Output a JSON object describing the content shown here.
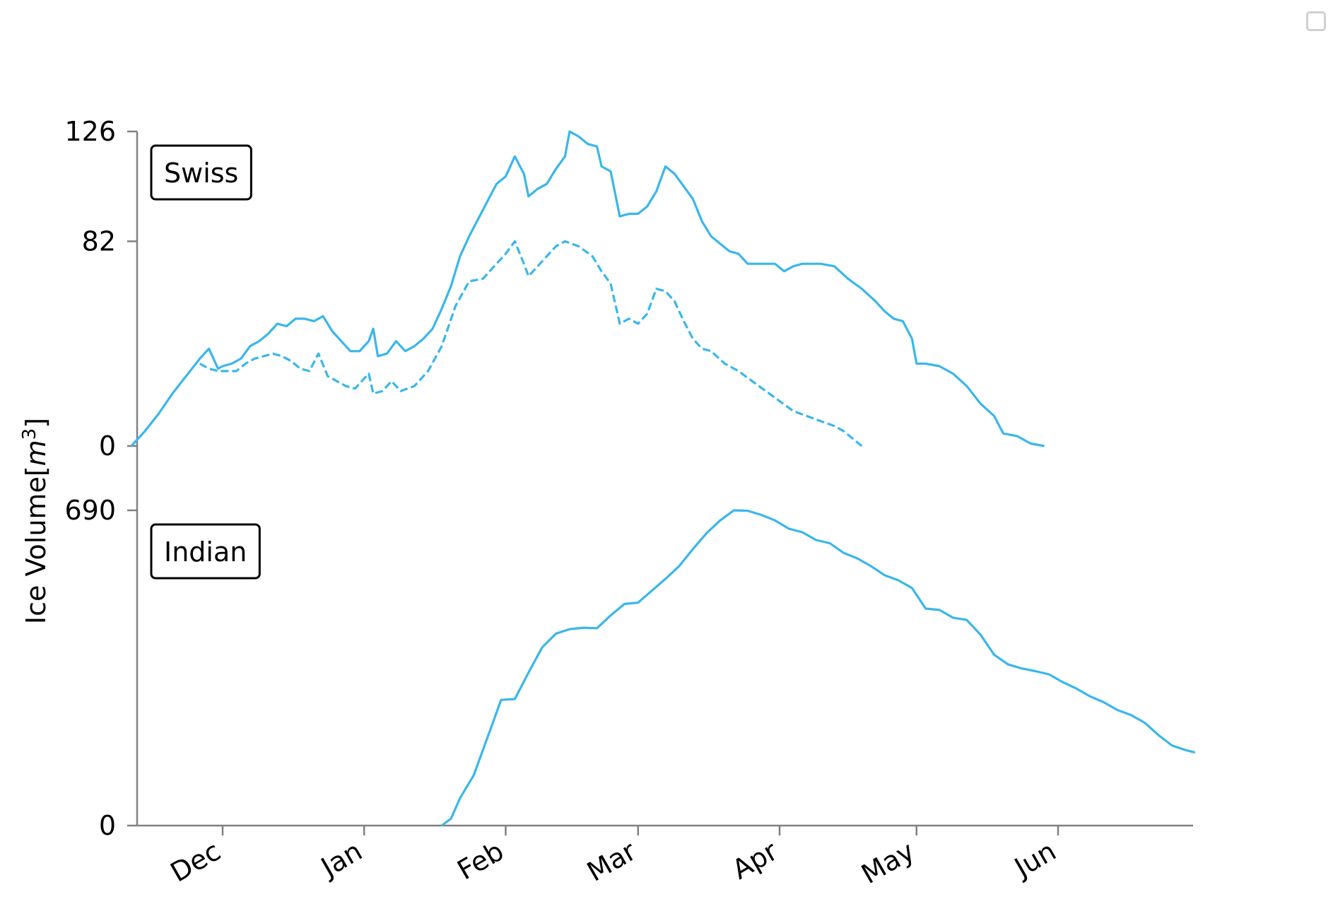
{
  "chart_data": {
    "type": "line",
    "ylabel": "Ice Volume[m³]",
    "ylabel_parts": {
      "main": "Ice Volume[",
      "var": "m",
      "exp": "3",
      "close": "]"
    },
    "x_ticks": [
      "Dec",
      "Jan",
      "Feb",
      "Mar",
      "Apr",
      "May",
      "Jun"
    ],
    "x_tick_dates": [
      "2019-12-01",
      "2020-01-01",
      "2020-02-01",
      "2020-03-01",
      "2020-04-01",
      "2020-05-01",
      "2020-06-01"
    ],
    "colors": {
      "series": "#39b6ec",
      "axis": "#808080",
      "box_border": "#000000"
    },
    "panels": [
      {
        "label": "Swiss",
        "ylim": [
          0,
          126
        ],
        "yticks": [
          "0",
          "82",
          "126"
        ],
        "series": [
          {
            "style": "solid",
            "points": [
              [
                "2019-11-11",
                0
              ],
              [
                "2019-11-14",
                6
              ],
              [
                "2019-11-17",
                13
              ],
              [
                "2019-11-20",
                21
              ],
              [
                "2019-11-23",
                28
              ],
              [
                "2019-11-26",
                35
              ],
              [
                "2019-11-28",
                39
              ],
              [
                "2019-11-30",
                31
              ],
              [
                "2019-12-01",
                32
              ],
              [
                "2019-12-03",
                33
              ],
              [
                "2019-12-05",
                35
              ],
              [
                "2019-12-07",
                40
              ],
              [
                "2019-12-09",
                42
              ],
              [
                "2019-12-11",
                45
              ],
              [
                "2019-12-13",
                49
              ],
              [
                "2019-12-15",
                48
              ],
              [
                "2019-12-17",
                51
              ],
              [
                "2019-12-19",
                51
              ],
              [
                "2019-12-21",
                50
              ],
              [
                "2019-12-23",
                52
              ],
              [
                "2019-12-25",
                46
              ],
              [
                "2019-12-27",
                42
              ],
              [
                "2019-12-29",
                38
              ],
              [
                "2019-12-31",
                38
              ],
              [
                "2020-01-02",
                42
              ],
              [
                "2020-01-03",
                47
              ],
              [
                "2020-01-04",
                36
              ],
              [
                "2020-01-06",
                37
              ],
              [
                "2020-01-08",
                42
              ],
              [
                "2020-01-10",
                38
              ],
              [
                "2020-01-12",
                40
              ],
              [
                "2020-01-14",
                43
              ],
              [
                "2020-01-16",
                47
              ],
              [
                "2020-01-18",
                55
              ],
              [
                "2020-01-20",
                64
              ],
              [
                "2020-01-22",
                76
              ],
              [
                "2020-01-24",
                84
              ],
              [
                "2020-01-26",
                91
              ],
              [
                "2020-01-28",
                98
              ],
              [
                "2020-01-30",
                105
              ],
              [
                "2020-02-01",
                108
              ],
              [
                "2020-02-03",
                116
              ],
              [
                "2020-02-05",
                109
              ],
              [
                "2020-02-06",
                100
              ],
              [
                "2020-02-08",
                103
              ],
              [
                "2020-02-10",
                105
              ],
              [
                "2020-02-12",
                111
              ],
              [
                "2020-02-14",
                116
              ],
              [
                "2020-02-15",
                126
              ],
              [
                "2020-02-17",
                124
              ],
              [
                "2020-02-19",
                121
              ],
              [
                "2020-02-21",
                120
              ],
              [
                "2020-02-22",
                112
              ],
              [
                "2020-02-24",
                110
              ],
              [
                "2020-02-26",
                92
              ],
              [
                "2020-02-28",
                93
              ],
              [
                "2020-03-01",
                93
              ],
              [
                "2020-03-03",
                96
              ],
              [
                "2020-03-05",
                102
              ],
              [
                "2020-03-07",
                112
              ],
              [
                "2020-03-09",
                109
              ],
              [
                "2020-03-11",
                104
              ],
              [
                "2020-03-13",
                99
              ],
              [
                "2020-03-15",
                90
              ],
              [
                "2020-03-17",
                84
              ],
              [
                "2020-03-19",
                81
              ],
              [
                "2020-03-21",
                78
              ],
              [
                "2020-03-23",
                77
              ],
              [
                "2020-03-25",
                73
              ],
              [
                "2020-03-28",
                73
              ],
              [
                "2020-03-31",
                73
              ],
              [
                "2020-04-02",
                70
              ],
              [
                "2020-04-04",
                72
              ],
              [
                "2020-04-06",
                73
              ],
              [
                "2020-04-10",
                73
              ],
              [
                "2020-04-13",
                72
              ],
              [
                "2020-04-16",
                67
              ],
              [
                "2020-04-19",
                63
              ],
              [
                "2020-04-22",
                58
              ],
              [
                "2020-04-24",
                54
              ],
              [
                "2020-04-26",
                51
              ],
              [
                "2020-04-28",
                50
              ],
              [
                "2020-04-30",
                43
              ],
              [
                "2020-05-01",
                33
              ],
              [
                "2020-05-03",
                33
              ],
              [
                "2020-05-06",
                32
              ],
              [
                "2020-05-09",
                29
              ],
              [
                "2020-05-12",
                24
              ],
              [
                "2020-05-15",
                17
              ],
              [
                "2020-05-18",
                12
              ],
              [
                "2020-05-20",
                5
              ],
              [
                "2020-05-23",
                4
              ],
              [
                "2020-05-26",
                1
              ],
              [
                "2020-05-29",
                0
              ]
            ]
          },
          {
            "style": "dashed",
            "points": [
              [
                "2019-11-26",
                33
              ],
              [
                "2019-11-28",
                31
              ],
              [
                "2019-11-30",
                30
              ],
              [
                "2019-12-02",
                30
              ],
              [
                "2019-12-04",
                30
              ],
              [
                "2019-12-06",
                33
              ],
              [
                "2019-12-08",
                35
              ],
              [
                "2019-12-10",
                36
              ],
              [
                "2019-12-12",
                37
              ],
              [
                "2019-12-14",
                36
              ],
              [
                "2019-12-16",
                34
              ],
              [
                "2019-12-18",
                31
              ],
              [
                "2019-12-20",
                30
              ],
              [
                "2019-12-22",
                37
              ],
              [
                "2019-12-24",
                28
              ],
              [
                "2019-12-26",
                26
              ],
              [
                "2019-12-28",
                24
              ],
              [
                "2019-12-30",
                23
              ],
              [
                "2020-01-01",
                27
              ],
              [
                "2020-01-02",
                29
              ],
              [
                "2020-01-03",
                21
              ],
              [
                "2020-01-05",
                22
              ],
              [
                "2020-01-07",
                26
              ],
              [
                "2020-01-09",
                22
              ],
              [
                "2020-01-12",
                24
              ],
              [
                "2020-01-15",
                30
              ],
              [
                "2020-01-18",
                40
              ],
              [
                "2020-01-21",
                56
              ],
              [
                "2020-01-24",
                66
              ],
              [
                "2020-01-27",
                67
              ],
              [
                "2020-01-30",
                73
              ],
              [
                "2020-02-01",
                77
              ],
              [
                "2020-02-03",
                82
              ],
              [
                "2020-02-05",
                73
              ],
              [
                "2020-02-06",
                68
              ],
              [
                "2020-02-08",
                72
              ],
              [
                "2020-02-10",
                76
              ],
              [
                "2020-02-12",
                80
              ],
              [
                "2020-02-14",
                82
              ],
              [
                "2020-02-17",
                80
              ],
              [
                "2020-02-20",
                76
              ],
              [
                "2020-02-22",
                70
              ],
              [
                "2020-02-24",
                65
              ],
              [
                "2020-02-26",
                49
              ],
              [
                "2020-02-28",
                51
              ],
              [
                "2020-03-01",
                49
              ],
              [
                "2020-03-03",
                53
              ],
              [
                "2020-03-05",
                63
              ],
              [
                "2020-03-07",
                62
              ],
              [
                "2020-03-09",
                58
              ],
              [
                "2020-03-11",
                50
              ],
              [
                "2020-03-13",
                43
              ],
              [
                "2020-03-15",
                39
              ],
              [
                "2020-03-17",
                38
              ],
              [
                "2020-03-20",
                33
              ],
              [
                "2020-03-23",
                30
              ],
              [
                "2020-03-26",
                26
              ],
              [
                "2020-03-29",
                22
              ],
              [
                "2020-04-01",
                18
              ],
              [
                "2020-04-04",
                14
              ],
              [
                "2020-04-07",
                12
              ],
              [
                "2020-04-10",
                10
              ],
              [
                "2020-04-13",
                8
              ],
              [
                "2020-04-15",
                6
              ],
              [
                "2020-04-17",
                3
              ],
              [
                "2020-04-19",
                0
              ]
            ]
          }
        ]
      },
      {
        "label": "Indian",
        "ylim": [
          0,
          690
        ],
        "yticks": [
          "0",
          "690"
        ],
        "series": [
          {
            "style": "solid",
            "points": [
              [
                "2020-01-18",
                0
              ],
              [
                "2020-01-20",
                15
              ],
              [
                "2020-01-22",
                60
              ],
              [
                "2020-01-25",
                110
              ],
              [
                "2020-01-27",
                165
              ],
              [
                "2020-01-29",
                220
              ],
              [
                "2020-01-31",
                275
              ],
              [
                "2020-02-03",
                277
              ],
              [
                "2020-02-06",
                335
              ],
              [
                "2020-02-09",
                390
              ],
              [
                "2020-02-12",
                420
              ],
              [
                "2020-02-15",
                430
              ],
              [
                "2020-02-18",
                433
              ],
              [
                "2020-02-21",
                432
              ],
              [
                "2020-02-24",
                460
              ],
              [
                "2020-02-27",
                485
              ],
              [
                "2020-03-01",
                488
              ],
              [
                "2020-03-04",
                514
              ],
              [
                "2020-03-07",
                540
              ],
              [
                "2020-03-10",
                568
              ],
              [
                "2020-03-13",
                605
              ],
              [
                "2020-03-16",
                640
              ],
              [
                "2020-03-19",
                668
              ],
              [
                "2020-03-22",
                690
              ],
              [
                "2020-03-25",
                689
              ],
              [
                "2020-03-28",
                680
              ],
              [
                "2020-03-31",
                668
              ],
              [
                "2020-04-03",
                650
              ],
              [
                "2020-04-06",
                642
              ],
              [
                "2020-04-09",
                625
              ],
              [
                "2020-04-12",
                618
              ],
              [
                "2020-04-15",
                597
              ],
              [
                "2020-04-18",
                585
              ],
              [
                "2020-04-21",
                568
              ],
              [
                "2020-04-24",
                548
              ],
              [
                "2020-04-27",
                537
              ],
              [
                "2020-04-30",
                520
              ],
              [
                "2020-05-03",
                475
              ],
              [
                "2020-05-06",
                472
              ],
              [
                "2020-05-09",
                455
              ],
              [
                "2020-05-12",
                450
              ],
              [
                "2020-05-15",
                418
              ],
              [
                "2020-05-18",
                374
              ],
              [
                "2020-05-21",
                353
              ],
              [
                "2020-05-24",
                344
              ],
              [
                "2020-05-27",
                338
              ],
              [
                "2020-05-30",
                331
              ],
              [
                "2020-06-02",
                314
              ],
              [
                "2020-06-05",
                300
              ],
              [
                "2020-06-08",
                283
              ],
              [
                "2020-06-11",
                270
              ],
              [
                "2020-06-14",
                253
              ],
              [
                "2020-06-17",
                242
              ],
              [
                "2020-06-20",
                225
              ],
              [
                "2020-06-23",
                198
              ],
              [
                "2020-06-26",
                175
              ],
              [
                "2020-06-29",
                165
              ],
              [
                "2020-07-01",
                160
              ]
            ]
          }
        ]
      }
    ]
  }
}
